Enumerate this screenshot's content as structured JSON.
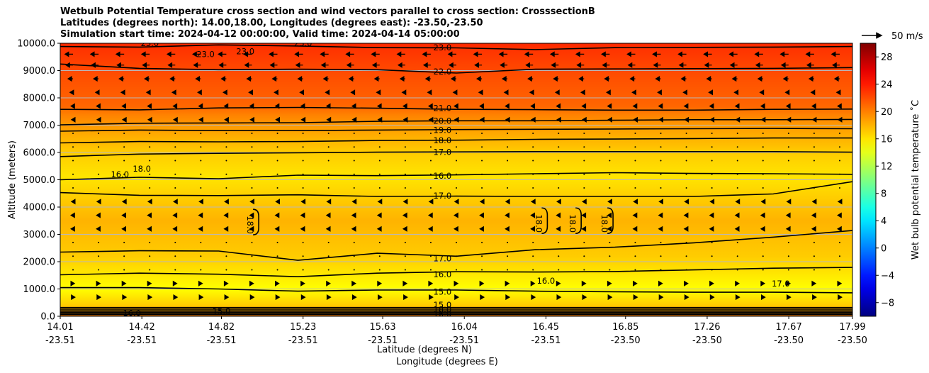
{
  "title": {
    "line1": "Wetbulb Potential Temperature cross section and wind vectors parallel to cross section: CrosssectionB",
    "line2": "Latitudes (degrees north): 14.00,18.00, Longitudes (degrees east): -23.50,-23.50",
    "line3": "Simulation start time: 2024-04-12 00:00:00, Valid time: 2024-04-14 05:00:00"
  },
  "chart_data": {
    "type": "heatmap",
    "ylabel": "Altitude (meters)",
    "xlabel_lat": "Latitude (degrees N)",
    "xlabel_lon": "Longitude (degrees E)",
    "ylim": [
      0,
      10000
    ],
    "y_ticks": [
      "10000.0",
      "9000.0",
      "8000.0",
      "7000.0",
      "6000.0",
      "5000.0",
      "4000.0",
      "3000.0",
      "2000.0",
      "1000.0",
      "0.0"
    ],
    "y_tick_values": [
      10000,
      9000,
      8000,
      7000,
      6000,
      5000,
      4000,
      3000,
      2000,
      1000,
      0
    ],
    "x_ticks_lat": [
      "14.01",
      "14.42",
      "14.82",
      "15.23",
      "15.63",
      "16.04",
      "16.45",
      "16.85",
      "17.26",
      "17.67",
      "17.99"
    ],
    "x_ticks_lon": [
      "-23.51",
      "-23.51",
      "-23.51",
      "-23.51",
      "-23.51",
      "-23.51",
      "-23.51",
      "-23.50",
      "-23.50",
      "-23.50",
      "-23.50"
    ],
    "xlim_lat": [
      14.01,
      17.99
    ],
    "grid": "horizontal",
    "colorbar": {
      "label": "Wet bulb potential temperature ˚C",
      "ticks": [
        "28",
        "24",
        "20",
        "16",
        "12",
        "8",
        "4",
        "0",
        "−4",
        "−8"
      ],
      "tick_values": [
        28,
        24,
        20,
        16,
        12,
        8,
        4,
        0,
        -4,
        -8
      ],
      "range": [
        -10,
        30
      ],
      "colormap": "jet"
    },
    "quiver_key": "50 m/s",
    "field_profile": [
      {
        "z": 0,
        "t": 20
      },
      {
        "z": 400,
        "t": 17
      },
      {
        "z": 1000,
        "t": 15
      },
      {
        "z": 1600,
        "t": 16
      },
      {
        "z": 2200,
        "t": 17
      },
      {
        "z": 3500,
        "t": 18
      },
      {
        "z": 4300,
        "t": 17
      },
      {
        "z": 5100,
        "t": 16
      },
      {
        "z": 6000,
        "t": 17
      },
      {
        "z": 6500,
        "t": 18
      },
      {
        "z": 7000,
        "t": 19
      },
      {
        "z": 7400,
        "t": 20
      },
      {
        "z": 7700,
        "t": 21
      },
      {
        "z": 8900,
        "t": 22
      },
      {
        "z": 9800,
        "t": 23
      },
      {
        "z": 10000,
        "t": 23.5
      }
    ],
    "contours": [
      {
        "level": 15.0,
        "label": "15.0",
        "heights": [
          1050,
          1050,
          1000,
          920,
          960,
          960,
          920,
          900,
          880,
          880,
          860
        ]
      },
      {
        "level": 16.0,
        "label": "16.0",
        "heights": [
          1520,
          1580,
          1540,
          1450,
          1580,
          1630,
          1620,
          1640,
          1700,
          1760,
          1790
        ]
      },
      {
        "level": 17.0,
        "label": "17.0",
        "heights": [
          2350,
          2400,
          2390,
          2050,
          2310,
          2200,
          2440,
          2530,
          2690,
          2900,
          3140
        ]
      },
      {
        "level": 16.0,
        "label": "16.0",
        "heights": [
          5000,
          5090,
          5040,
          5170,
          5150,
          5180,
          5220,
          5260,
          5230,
          5220,
          5200
        ]
      },
      {
        "level": 17.0,
        "label": "17.0",
        "heights": [
          4530,
          4430,
          4420,
          4450,
          4390,
          4400,
          4390,
          4390,
          4390,
          4480,
          4930
        ]
      },
      {
        "level": 17.0,
        "label": "17.0",
        "heights": [
          5850,
          5940,
          5970,
          5990,
          6010,
          6020,
          6030,
          6030,
          6030,
          6030,
          6010
        ]
      },
      {
        "level": 18.0,
        "label": "18.0",
        "heights": [
          6350,
          6400,
          6390,
          6400,
          6440,
          6450,
          6480,
          6490,
          6510,
          6530,
          6530
        ]
      },
      {
        "level": 19.0,
        "label": "19.0",
        "heights": [
          6780,
          6820,
          6800,
          6800,
          6820,
          6840,
          6850,
          6860,
          6870,
          6880,
          6870
        ]
      },
      {
        "level": 20.0,
        "label": "20.0",
        "heights": [
          7010,
          7070,
          7080,
          7090,
          7140,
          7160,
          7160,
          7180,
          7200,
          7200,
          7210
        ]
      },
      {
        "level": 21.0,
        "label": "21.0",
        "heights": [
          7580,
          7560,
          7630,
          7650,
          7620,
          7580,
          7570,
          7550,
          7550,
          7580,
          7590
        ]
      },
      {
        "level": 22.0,
        "label": "22.0",
        "heights": [
          9240,
          9080,
          9030,
          9050,
          9030,
          8910,
          9050,
          9060,
          9070,
          9080,
          9110
        ]
      },
      {
        "level": 23.0,
        "label": "23.0",
        "heights": [
          9880,
          9860,
          9940,
          9900,
          9840,
          9830,
          9770,
          9840,
          9850,
          9860,
          9880
        ]
      }
    ],
    "closed_contours": [
      {
        "level": 18.0,
        "label": "18.0",
        "lat": 15.0,
        "z": 3450
      },
      {
        "level": 18.0,
        "label": "18.0",
        "lat": 16.45,
        "z": 3500
      },
      {
        "level": 18.0,
        "label": "18.0",
        "lat": 16.62,
        "z": 3500
      },
      {
        "level": 18.0,
        "label": "18.0",
        "lat": 16.78,
        "z": 3500
      }
    ],
    "inline_labels": [
      {
        "label": "23.0",
        "lat": 15.93,
        "z": 9850
      },
      {
        "label": "22.0",
        "lat": 15.93,
        "z": 8960
      },
      {
        "label": "21.0",
        "lat": 15.93,
        "z": 7620
      },
      {
        "label": "20.0",
        "lat": 15.93,
        "z": 7150
      },
      {
        "label": "19.0",
        "lat": 15.93,
        "z": 6820
      },
      {
        "label": "18.0",
        "lat": 15.93,
        "z": 6440
      },
      {
        "label": "17.0",
        "lat": 15.93,
        "z": 6010
      },
      {
        "label": "16.0",
        "lat": 15.93,
        "z": 5140
      },
      {
        "label": "17.0",
        "lat": 15.93,
        "z": 4410
      },
      {
        "label": "17.0",
        "lat": 15.93,
        "z": 2120
      },
      {
        "label": "16.0",
        "lat": 15.93,
        "z": 1530
      },
      {
        "label": "15.0",
        "lat": 15.93,
        "z": 900
      },
      {
        "label": "15.0",
        "lat": 15.93,
        "z": 420
      },
      {
        "label": "18.0",
        "lat": 15.93,
        "z": 250
      },
      {
        "label": "16.0",
        "lat": 15.93,
        "z": 90
      },
      {
        "label": "15.0",
        "lat": 14.82,
        "z": 200
      },
      {
        "label": "16.0",
        "lat": 14.37,
        "z": 120
      },
      {
        "label": "18.0",
        "lat": 14.42,
        "z": 5400
      },
      {
        "label": "16.0",
        "lat": 14.31,
        "z": 5200
      },
      {
        "label": "16.0",
        "lat": 16.45,
        "z": 1300
      },
      {
        "label": "17.0",
        "lat": 17.63,
        "z": 1200
      },
      {
        "label": "23.0",
        "lat": 14.74,
        "z": 9600
      },
      {
        "label": "23.0",
        "lat": 14.94,
        "z": 9700
      },
      {
        "label": "23.0",
        "lat": 15.23,
        "z": 10000
      },
      {
        "label": "23.0",
        "lat": 14.46,
        "z": 10000
      }
    ],
    "wind": {
      "direction": "negative x (southward) aloft, weak positive near surface",
      "levels": [
        {
          "z": 9600,
          "u": -8
        },
        {
          "z": 9200,
          "u": -7
        },
        {
          "z": 8700,
          "u": -5
        },
        {
          "z": 8200,
          "u": -3
        },
        {
          "z": 7700,
          "u": -2
        },
        {
          "z": 7200,
          "u": -1.5
        },
        {
          "z": 6700,
          "u": -1
        },
        {
          "z": 6200,
          "u": -1
        },
        {
          "z": 5700,
          "u": -0.5
        },
        {
          "z": 5200,
          "u": -0.5
        },
        {
          "z": 4700,
          "u": -1
        },
        {
          "z": 4200,
          "u": -1.5
        },
        {
          "z": 3700,
          "u": -2
        },
        {
          "z": 3200,
          "u": -2
        },
        {
          "z": 2700,
          "u": -1
        },
        {
          "z": 2200,
          "u": 0.5
        },
        {
          "z": 1700,
          "u": 1
        },
        {
          "z": 1200,
          "u": 1.5
        },
        {
          "z": 700,
          "u": 2
        }
      ]
    }
  }
}
